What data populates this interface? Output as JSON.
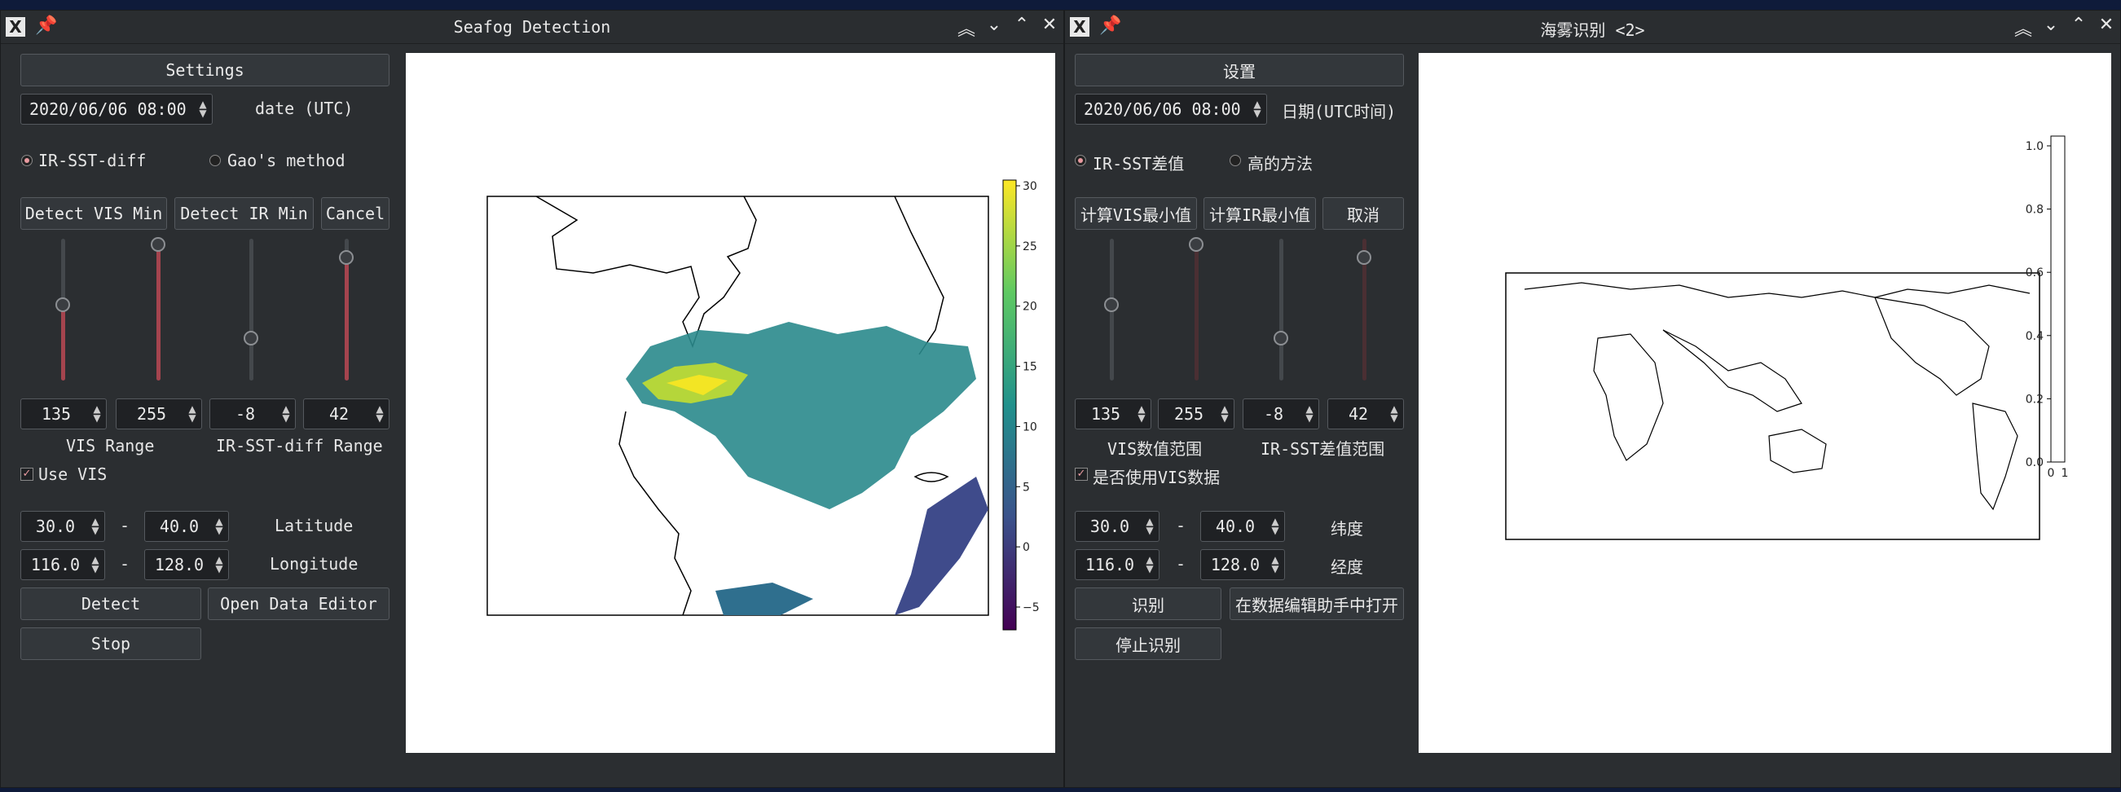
{
  "left": {
    "title": "Seafog Detection",
    "settings": "Settings",
    "date_value": "2020/06/06 08:00",
    "date_label": "date (UTC)",
    "radio1": "IR-SST-diff",
    "radio2": "Gao's method",
    "btn_vis": "Detect VIS Min",
    "btn_ir": "Detect IR Min",
    "btn_cancel": "Cancel",
    "vals": [
      "135",
      "255",
      "-8",
      "42"
    ],
    "range1": "VIS Range",
    "range2": "IR-SST-diff Range",
    "use_vis": "Use VIS",
    "lat_min": "30.0",
    "lat_max": "40.0",
    "lat_label": "Latitude",
    "lon_min": "116.0",
    "lon_max": "128.0",
    "lon_label": "Longitude",
    "dash": "-",
    "detect": "Detect",
    "editor": "Open Data Editor",
    "stop": "Stop",
    "colorbar_ticks": [
      "30",
      "25",
      "20",
      "15",
      "10",
      "5",
      "0",
      "−5"
    ]
  },
  "right": {
    "title": "海雾识别 <2>",
    "settings": "设置",
    "date_value": "2020/06/06 08:00",
    "date_label": "日期(UTC时间)",
    "radio1": "IR-SST差值",
    "radio2": "高的方法",
    "btn_vis": "计算VIS最小值",
    "btn_ir": "计算IR最小值",
    "btn_cancel": "取消",
    "vals": [
      "135",
      "255",
      "-8",
      "42"
    ],
    "range1": "VIS数值范围",
    "range2": "IR-SST差值范围",
    "use_vis": "是否使用VIS数据",
    "lat_min": "30.0",
    "lat_max": "40.0",
    "lat_label": "纬度",
    "lon_min": "116.0",
    "lon_max": "128.0",
    "lon_label": "经度",
    "dash": "-",
    "detect": "识别",
    "editor": "在数据编辑助手中打开",
    "stop": "停止识别",
    "colorbar_ticks": [
      "1.0",
      "0.8",
      "0.6",
      "0.4",
      "0.2",
      "0.0"
    ],
    "colorbar_xticks": [
      "0",
      "1"
    ]
  },
  "sliders": {
    "vis_min": 135,
    "vis_max": 255,
    "ir_min": -8,
    "ir_max": 42
  },
  "colors": {
    "accent": "#a4444e",
    "window_bg": "#2b2e31",
    "desktop_bg": "#0f1b3a"
  }
}
